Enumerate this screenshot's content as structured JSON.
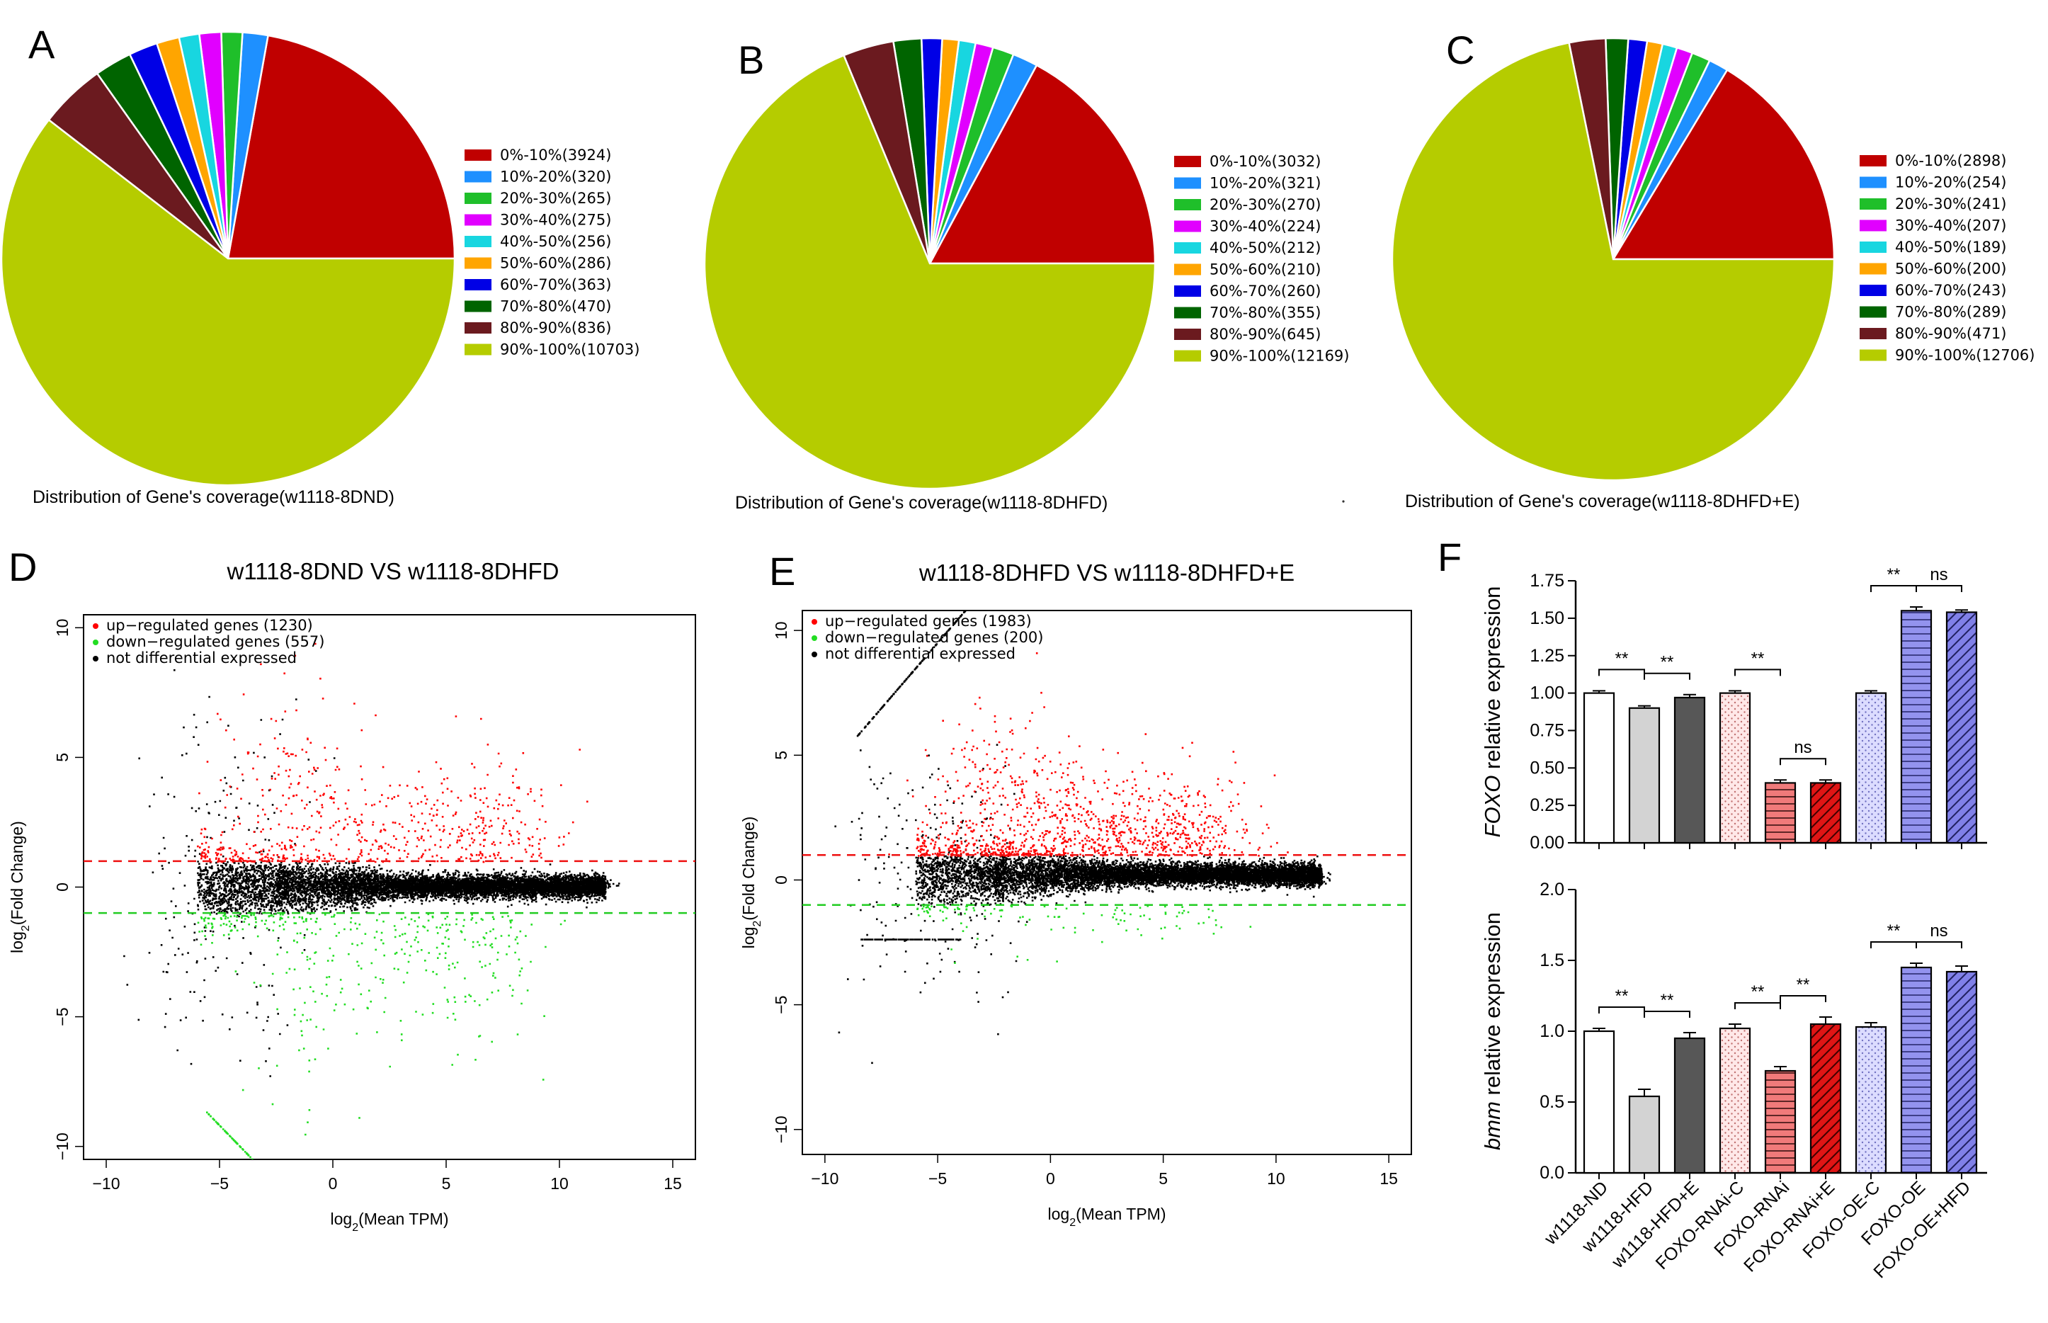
{
  "panel_labels": [
    "A",
    "B",
    "C",
    "D",
    "E",
    "F"
  ],
  "colors": {
    "slices": [
      "#c00000",
      "#1e90ff",
      "#1fbf2a",
      "#e100ff",
      "#18d6e0",
      "#ffa500",
      "#0000e6",
      "#006400",
      "#6b1a1f",
      "#b5cc00"
    ],
    "up": "#ff0000",
    "down": "#22dd22",
    "ns": "#000000",
    "line_up": "#ee1111",
    "line_down": "#22cc22"
  },
  "chart_data": [
    {
      "type": "pie",
      "panel": "A",
      "caption": "Distribution of Gene's coverage(w1118-8DND)",
      "labels": [
        "0%-10%(3924)",
        "10%-20%(320)",
        "20%-30%(265)",
        "30%-40%(275)",
        "40%-50%(256)",
        "50%-60%(286)",
        "60%-70%(363)",
        "70%-80%(470)",
        "80%-90%(836)",
        "90%-100%(10703)"
      ],
      "values": [
        3924,
        320,
        265,
        275,
        256,
        286,
        363,
        470,
        836,
        10703
      ]
    },
    {
      "type": "pie",
      "panel": "B",
      "caption": "Distribution of Gene's coverage(w1118-8DHFD)",
      "labels": [
        "0%-10%(3032)",
        "10%-20%(321)",
        "20%-30%(270)",
        "30%-40%(224)",
        "40%-50%(212)",
        "50%-60%(210)",
        "60%-70%(260)",
        "70%-80%(355)",
        "80%-90%(645)",
        "90%-100%(12169)"
      ],
      "values": [
        3032,
        321,
        270,
        224,
        212,
        210,
        260,
        355,
        645,
        12169
      ]
    },
    {
      "type": "pie",
      "panel": "C",
      "caption": "Distribution of Gene's coverage(w1118-8DHFD+E)",
      "labels": [
        "0%-10%(2898)",
        "10%-20%(254)",
        "20%-30%(241)",
        "30%-40%(207)",
        "40%-50%(189)",
        "50%-60%(200)",
        "60%-70%(243)",
        "70%-80%(289)",
        "80%-90%(471)",
        "90%-100%(12706)"
      ],
      "values": [
        2898,
        254,
        241,
        207,
        189,
        200,
        243,
        289,
        471,
        12706
      ]
    },
    {
      "type": "scatter",
      "panel": "D",
      "title": "w1118-8DND VS w1118-8DHFD",
      "xlabel": "log2(Mean TPM)",
      "ylabel": "log2(Fold Change)",
      "xlim": [
        -11,
        16
      ],
      "ylim": [
        -10.5,
        10.5
      ],
      "xticks": [
        -10,
        -5,
        0,
        5,
        10,
        15
      ],
      "yticks": [
        -10,
        -5,
        0,
        5,
        10
      ],
      "thresholds": [
        1,
        -1
      ],
      "legend": [
        "up−regulated genes (1230)",
        "down−regulated genes (557)",
        "not differential expressed"
      ]
    },
    {
      "type": "scatter",
      "panel": "E",
      "title": "w1118-8DHFD VS w1118-8DHFD+E",
      "xlabel": "log2(Mean TPM)",
      "ylabel": "log2(Fold Change)",
      "xlim": [
        -11,
        16
      ],
      "ylim": [
        -11,
        10.8
      ],
      "xticks": [
        -10,
        -5,
        0,
        5,
        10,
        15
      ],
      "yticks": [
        -10,
        -5,
        0,
        5,
        10
      ],
      "thresholds": [
        1,
        -1
      ],
      "legend": [
        "up−regulated genes (1983)",
        "down−regulated genes (200)",
        "not differential expressed"
      ]
    },
    {
      "type": "bar",
      "panel": "F-top",
      "ylabel_italic": "FOXO",
      "ylabel_rest": " relative expression",
      "ylim": [
        0,
        1.75
      ],
      "yticks": [
        "0.00",
        "0.25",
        "0.50",
        "0.75",
        "1.00",
        "1.25",
        "1.50",
        "1.75"
      ],
      "categories": [
        "w1118-ND",
        "w1118-HFD",
        "w1118-HFD+E",
        "FOXO-RNAi-C",
        "FOXO-RNAi",
        "FOXO-RNAi+E",
        "FOXO-OE-C",
        "FOXO-OE",
        "FOXO-OE+HFD"
      ],
      "values": [
        1.0,
        0.9,
        0.97,
        1.0,
        0.4,
        0.4,
        1.0,
        1.55,
        1.54
      ],
      "errors": [
        0.015,
        0.015,
        0.02,
        0.015,
        0.02,
        0.02,
        0.015,
        0.025,
        0.015
      ],
      "significance": [
        {
          "from": 0,
          "to": 1,
          "label": "**"
        },
        {
          "from": 1,
          "to": 2,
          "label": "**"
        },
        {
          "from": 3,
          "to": 4,
          "label": "**"
        },
        {
          "from": 4,
          "to": 5,
          "label": "ns"
        },
        {
          "from": 6,
          "to": 7,
          "label": "**"
        },
        {
          "from": 7,
          "to": 8,
          "label": "ns"
        }
      ]
    },
    {
      "type": "bar",
      "panel": "F-bottom",
      "ylabel_italic": "bmm",
      "ylabel_rest": " relative expression",
      "ylim": [
        0,
        2.0
      ],
      "yticks": [
        "0.0",
        "0.5",
        "1.0",
        "1.5",
        "2.0"
      ],
      "categories": [
        "w1118-ND",
        "w1118-HFD",
        "w1118-HFD+E",
        "FOXO-RNAi-C",
        "FOXO-RNAi",
        "FOXO-RNAi+E",
        "FOXO-OE-C",
        "FOXO-OE",
        "FOXO-OE+HFD"
      ],
      "values": [
        1.0,
        0.54,
        0.95,
        1.02,
        0.72,
        1.05,
        1.03,
        1.45,
        1.42
      ],
      "errors": [
        0.02,
        0.05,
        0.04,
        0.03,
        0.03,
        0.05,
        0.03,
        0.03,
        0.04
      ],
      "significance": [
        {
          "from": 0,
          "to": 1,
          "label": "**"
        },
        {
          "from": 1,
          "to": 2,
          "label": "**"
        },
        {
          "from": 3,
          "to": 4,
          "label": "**"
        },
        {
          "from": 4,
          "to": 5,
          "label": "**"
        },
        {
          "from": 6,
          "to": 7,
          "label": "**"
        },
        {
          "from": 7,
          "to": 8,
          "label": "ns"
        }
      ]
    }
  ]
}
